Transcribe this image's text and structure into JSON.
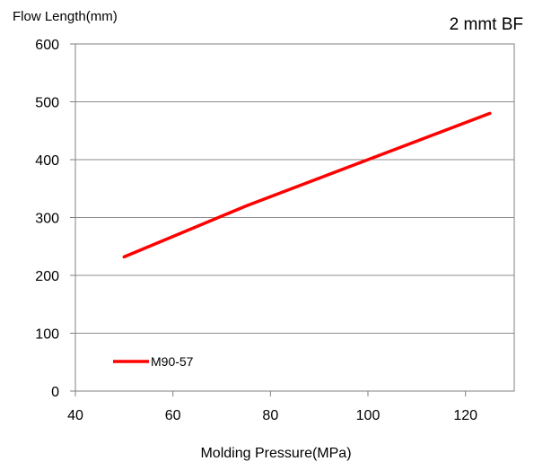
{
  "chart_data": {
    "type": "line",
    "ylabel": "Flow   Length(mm)",
    "xlabel": "Molding Pressure(MPa)",
    "annotation": "2 mmt   BF",
    "xlim": [
      40,
      130
    ],
    "ylim": [
      0,
      600
    ],
    "xticks": [
      40,
      60,
      80,
      100,
      120
    ],
    "yticks": [
      0,
      100,
      200,
      300,
      400,
      500,
      600
    ],
    "grid": "horizontal",
    "legend_position": "bottom-left",
    "series": [
      {
        "name": "M90-57",
        "color": "#ff0000",
        "x": [
          50,
          75,
          100,
          125
        ],
        "y": [
          232,
          320,
          400,
          480
        ]
      }
    ]
  }
}
